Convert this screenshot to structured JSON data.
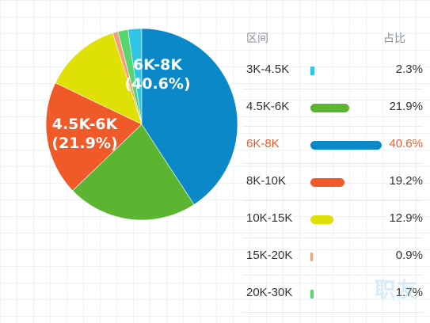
{
  "table": {
    "header_range": "区间",
    "header_pct": "占比"
  },
  "watermark": "职友",
  "chart_data": {
    "type": "pie",
    "categories": [
      "3K-4.5K",
      "4.5K-6K",
      "6K-8K",
      "8K-10K",
      "10K-15K",
      "15K-20K",
      "20K-30K"
    ],
    "values": [
      2.3,
      21.9,
      40.6,
      19.2,
      12.9,
      0.9,
      1.7
    ],
    "value_labels": [
      "2.3%",
      "21.9%",
      "40.6%",
      "19.2%",
      "12.9%",
      "0.9%",
      "1.7%"
    ],
    "slice_labels": {
      "4.5K-6K": [
        "4.5K-6K",
        "(21.9%)"
      ],
      "6K-8K": [
        "6K-8K",
        "(40.6%)"
      ]
    },
    "colors": [
      "#2ec5e6",
      "#5bb531",
      "#0a88c8",
      "#f05a28",
      "#dfe005",
      "#f2a07c",
      "#58d56e"
    ],
    "highlight_color": "#f05a28",
    "active_category": "6K-8K"
  }
}
